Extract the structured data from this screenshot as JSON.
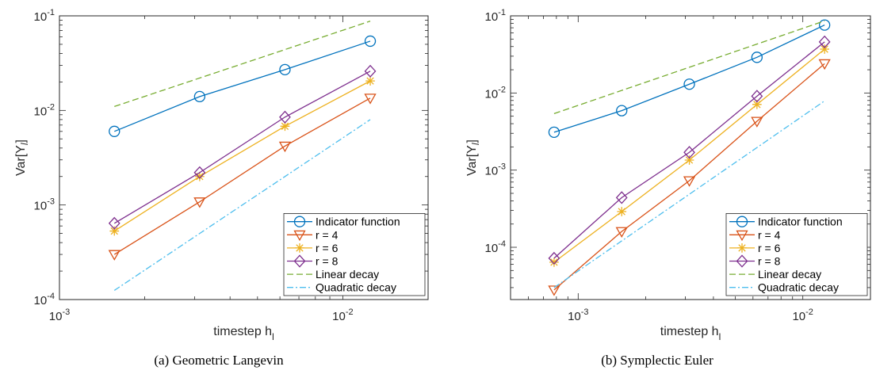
{
  "chart_data": [
    {
      "type": "line",
      "caption": "(a) Geometric Langevin",
      "xlabel": "timestep h",
      "xlabel_sub": "l",
      "ylabel": "Var[Y",
      "ylabel_sub": "l",
      "ylabel_end": "]",
      "xscale": "log",
      "yscale": "log",
      "xlim": [
        0.001,
        0.02
      ],
      "ylim": [
        0.0001,
        0.1
      ],
      "xticks": [
        0.001,
        0.01
      ],
      "xtick_labels": [
        {
          "base": "10",
          "exp": "-3"
        },
        {
          "base": "10",
          "exp": "-2"
        }
      ],
      "yticks": [
        0.0001,
        0.001,
        0.01,
        0.1
      ],
      "ytick_labels": [
        {
          "base": "10",
          "exp": "-4"
        },
        {
          "base": "10",
          "exp": "-3"
        },
        {
          "base": "10",
          "exp": "-2"
        },
        {
          "base": "10",
          "exp": "-1"
        }
      ],
      "legend_position": "bottom-right",
      "series": [
        {
          "name": "Indicator function",
          "color": "#0072BD",
          "marker": "circle",
          "dash": "solid",
          "x": [
            0.0015625,
            0.003125,
            0.00625,
            0.0125
          ],
          "y": [
            0.006,
            0.014,
            0.027,
            0.054
          ]
        },
        {
          "name": "r = 4",
          "color": "#D95319",
          "marker": "triangle-down",
          "dash": "solid",
          "x": [
            0.0015625,
            0.003125,
            0.00625,
            0.0125
          ],
          "y": [
            0.0003,
            0.00108,
            0.0042,
            0.0135
          ]
        },
        {
          "name": "r = 6",
          "color": "#EDB120",
          "marker": "asterisk",
          "dash": "solid",
          "x": [
            0.0015625,
            0.003125,
            0.00625,
            0.0125
          ],
          "y": [
            0.00053,
            0.002,
            0.0068,
            0.0205
          ]
        },
        {
          "name": "r = 8",
          "color": "#7E2F8E",
          "marker": "diamond",
          "dash": "solid",
          "x": [
            0.0015625,
            0.003125,
            0.00625,
            0.0125
          ],
          "y": [
            0.00064,
            0.0022,
            0.0085,
            0.026
          ]
        },
        {
          "name": "Linear decay",
          "color": "#77AC30",
          "marker": "none",
          "dash": "dashed",
          "x": [
            0.0015625,
            0.0125
          ],
          "y": [
            0.011,
            0.088
          ]
        },
        {
          "name": "Quadratic decay",
          "color": "#4DBEEE",
          "marker": "none",
          "dash": "dashdot",
          "x": [
            0.0015625,
            0.0125
          ],
          "y": [
            0.000125,
            0.008
          ]
        }
      ]
    },
    {
      "type": "line",
      "caption": "(b) Symplectic Euler",
      "xlabel": "timestep h",
      "xlabel_sub": "l",
      "ylabel": "Var[Y",
      "ylabel_sub": "l",
      "ylabel_end": "]",
      "xscale": "log",
      "yscale": "log",
      "xlim": [
        0.0005,
        0.02
      ],
      "ylim": [
        2.1e-05,
        0.1
      ],
      "xticks": [
        0.001,
        0.01
      ],
      "xtick_labels": [
        {
          "base": "10",
          "exp": "-3"
        },
        {
          "base": "10",
          "exp": "-2"
        }
      ],
      "yticks": [
        0.0001,
        0.001,
        0.01,
        0.1
      ],
      "ytick_labels": [
        {
          "base": "10",
          "exp": "-4"
        },
        {
          "base": "10",
          "exp": "-3"
        },
        {
          "base": "10",
          "exp": "-2"
        },
        {
          "base": "10",
          "exp": "-1"
        }
      ],
      "legend_position": "bottom-right",
      "series": [
        {
          "name": "Indicator function",
          "color": "#0072BD",
          "marker": "circle",
          "dash": "solid",
          "x": [
            0.00078125,
            0.0015625,
            0.003125,
            0.00625,
            0.0125
          ],
          "y": [
            0.0031,
            0.0059,
            0.013,
            0.029,
            0.076
          ]
        },
        {
          "name": "r = 4",
          "color": "#D95319",
          "marker": "triangle-down",
          "dash": "solid",
          "x": [
            0.00078125,
            0.0015625,
            0.003125,
            0.00625,
            0.0125
          ],
          "y": [
            2.8e-05,
            0.00016,
            0.00073,
            0.0043,
            0.024
          ]
        },
        {
          "name": "r = 6",
          "color": "#EDB120",
          "marker": "asterisk",
          "dash": "solid",
          "x": [
            0.00078125,
            0.0015625,
            0.003125,
            0.00625,
            0.0125
          ],
          "y": [
            6.4e-05,
            0.00029,
            0.00135,
            0.0071,
            0.037
          ]
        },
        {
          "name": "r = 8",
          "color": "#7E2F8E",
          "marker": "diamond",
          "dash": "solid",
          "x": [
            0.00078125,
            0.0015625,
            0.003125,
            0.00625,
            0.0125
          ],
          "y": [
            7.2e-05,
            0.00044,
            0.0017,
            0.0091,
            0.046
          ]
        },
        {
          "name": "Linear decay",
          "color": "#77AC30",
          "marker": "none",
          "dash": "dashed",
          "x": [
            0.00078125,
            0.0125
          ],
          "y": [
            0.0054,
            0.086
          ]
        },
        {
          "name": "Quadratic decay",
          "color": "#4DBEEE",
          "marker": "none",
          "dash": "dashdot",
          "x": [
            0.00078125,
            0.0125
          ],
          "y": [
            3e-05,
            0.0079
          ]
        }
      ]
    }
  ]
}
